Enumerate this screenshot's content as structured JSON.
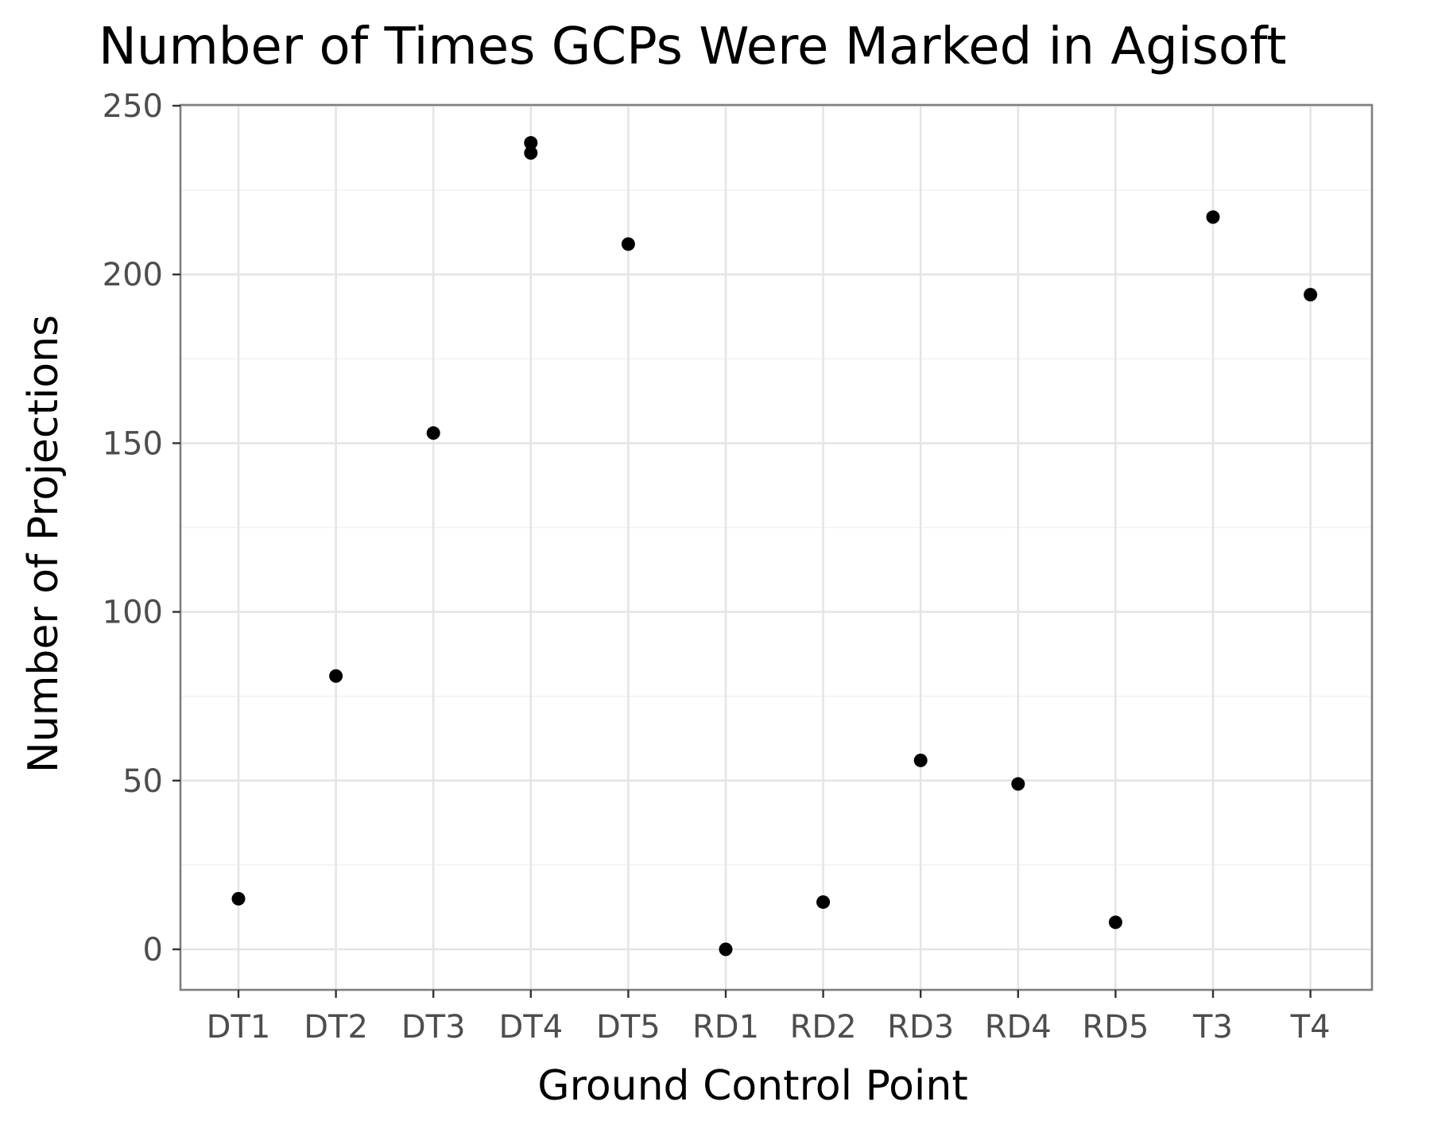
{
  "chart_data": {
    "type": "scatter",
    "title": "Number of Times GCPs Were Marked in Agisoft",
    "xlabel": "Ground Control Point",
    "ylabel": "Number of Projections",
    "categories": [
      "DT1",
      "DT2",
      "DT3",
      "DT4",
      "DT5",
      "RD1",
      "RD2",
      "RD3",
      "RD4",
      "RD5",
      "T3",
      "T4"
    ],
    "points": [
      {
        "x": "DT1",
        "y": 15
      },
      {
        "x": "DT2",
        "y": 81
      },
      {
        "x": "DT3",
        "y": 153
      },
      {
        "x": "DT4",
        "y": 239
      },
      {
        "x": "DT4",
        "y": 236
      },
      {
        "x": "DT5",
        "y": 209
      },
      {
        "x": "RD1",
        "y": 0
      },
      {
        "x": "RD2",
        "y": 14
      },
      {
        "x": "RD3",
        "y": 56
      },
      {
        "x": "RD4",
        "y": 49
      },
      {
        "x": "RD5",
        "y": 8
      },
      {
        "x": "T3",
        "y": 217
      },
      {
        "x": "T4",
        "y": 194
      }
    ],
    "yticks": [
      0,
      50,
      100,
      150,
      200,
      250
    ],
    "ylim": [
      -12,
      250
    ],
    "grid": true,
    "legend": "none",
    "point_color": "#000000"
  }
}
